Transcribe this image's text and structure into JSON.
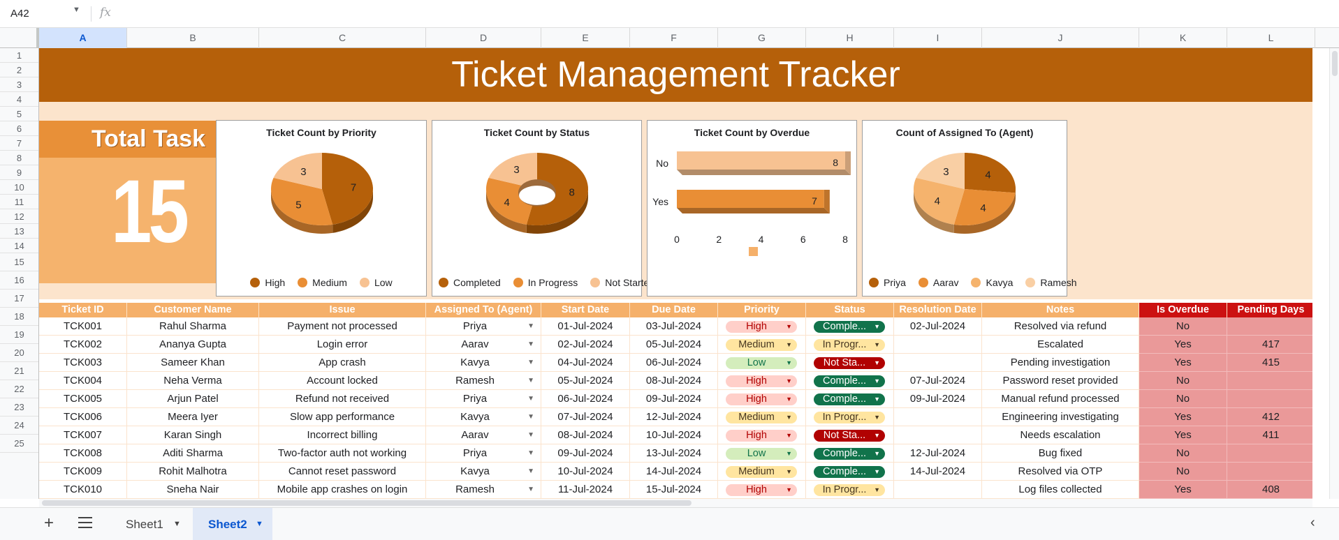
{
  "formula_bar": {
    "cell_ref": "A42",
    "fx_label": "fx"
  },
  "columns": [
    "A",
    "B",
    "C",
    "D",
    "E",
    "F",
    "G",
    "H",
    "I",
    "J",
    "K",
    "L"
  ],
  "rows": [
    "1",
    "2",
    "3",
    "4",
    "5",
    "6",
    "7",
    "8",
    "9",
    "10",
    "11",
    "12",
    "13",
    "14",
    "15",
    "16",
    "17",
    "18",
    "19",
    "20",
    "21",
    "22",
    "23",
    "24",
    "25"
  ],
  "title": "Ticket Management Tracker",
  "total_task": {
    "label": "Total Task",
    "value": "15"
  },
  "charts": {
    "priority": {
      "title": "Ticket Count by Priority",
      "type": "pie",
      "slices": [
        {
          "label": "High",
          "value": 7,
          "color": "#b5600a"
        },
        {
          "label": "Medium",
          "value": 5,
          "color": "#e98e35"
        },
        {
          "label": "Low",
          "value": 3,
          "color": "#f7c292"
        }
      ]
    },
    "status": {
      "title": "Ticket Count by Status",
      "type": "donut",
      "slices": [
        {
          "label": "Completed",
          "value": 8,
          "color": "#b5600a"
        },
        {
          "label": "In Progress",
          "value": 4,
          "color": "#e98e35"
        },
        {
          "label": "Not Started",
          "value": 3,
          "color": "#f7c292"
        }
      ]
    },
    "overdue": {
      "title": "Ticket Count by Overdue",
      "type": "bar",
      "categories": [
        "No",
        "Yes"
      ],
      "values": [
        8,
        7
      ],
      "colors": [
        "#f7c292",
        "#e98e35"
      ],
      "xlim": [
        0,
        8
      ],
      "ticks": [
        "0",
        "2",
        "4",
        "6",
        "8"
      ],
      "legend_color": "#f5b06a"
    },
    "agent": {
      "title": "Count of Assigned To (Agent)",
      "type": "pie",
      "slices": [
        {
          "label": "Priya",
          "value": 4,
          "color": "#b5600a"
        },
        {
          "label": "Aarav",
          "value": 4,
          "color": "#e98e35"
        },
        {
          "label": "Kavya",
          "value": 4,
          "color": "#f5b36d"
        },
        {
          "label": "Ramesh",
          "value": 3,
          "color": "#f9cfa4"
        }
      ]
    }
  },
  "table": {
    "headers": [
      "Ticket ID",
      "Customer Name",
      "Issue",
      "Assigned To (Agent)",
      "Start Date",
      "Due Date",
      "Priority",
      "Status",
      "Resolution Date",
      "Notes",
      "Is Overdue",
      "Pending Days"
    ],
    "rows": [
      {
        "id": "TCK001",
        "customer": "Rahul Sharma",
        "issue": "Payment not processed",
        "agent": "Priya",
        "start": "01-Jul-2024",
        "due": "03-Jul-2024",
        "priority": "High",
        "status": "Comple...",
        "resolution": "02-Jul-2024",
        "notes": "Resolved via refund",
        "overdue": "No",
        "pending": ""
      },
      {
        "id": "TCK002",
        "customer": "Ananya Gupta",
        "issue": "Login error",
        "agent": "Aarav",
        "start": "02-Jul-2024",
        "due": "05-Jul-2024",
        "priority": "Medium",
        "status": "In Progr...",
        "resolution": "",
        "notes": "Escalated",
        "overdue": "Yes",
        "pending": "417"
      },
      {
        "id": "TCK003",
        "customer": "Sameer Khan",
        "issue": "App crash",
        "agent": "Kavya",
        "start": "04-Jul-2024",
        "due": "06-Jul-2024",
        "priority": "Low",
        "status": "Not Sta...",
        "resolution": "",
        "notes": "Pending investigation",
        "overdue": "Yes",
        "pending": "415"
      },
      {
        "id": "TCK004",
        "customer": "Neha Verma",
        "issue": "Account locked",
        "agent": "Ramesh",
        "start": "05-Jul-2024",
        "due": "08-Jul-2024",
        "priority": "High",
        "status": "Comple...",
        "resolution": "07-Jul-2024",
        "notes": "Password reset provided",
        "overdue": "No",
        "pending": ""
      },
      {
        "id": "TCK005",
        "customer": "Arjun Patel",
        "issue": "Refund not received",
        "agent": "Priya",
        "start": "06-Jul-2024",
        "due": "09-Jul-2024",
        "priority": "High",
        "status": "Comple...",
        "resolution": "09-Jul-2024",
        "notes": "Manual refund processed",
        "overdue": "No",
        "pending": ""
      },
      {
        "id": "TCK006",
        "customer": "Meera Iyer",
        "issue": "Slow app performance",
        "agent": "Kavya",
        "start": "07-Jul-2024",
        "due": "12-Jul-2024",
        "priority": "Medium",
        "status": "In Progr...",
        "resolution": "",
        "notes": "Engineering investigating",
        "overdue": "Yes",
        "pending": "412"
      },
      {
        "id": "TCK007",
        "customer": "Karan Singh",
        "issue": "Incorrect billing",
        "agent": "Aarav",
        "start": "08-Jul-2024",
        "due": "10-Jul-2024",
        "priority": "High",
        "status": "Not Sta...",
        "resolution": "",
        "notes": "Needs escalation",
        "overdue": "Yes",
        "pending": "411"
      },
      {
        "id": "TCK008",
        "customer": "Aditi Sharma",
        "issue": "Two-factor auth not working",
        "agent": "Priya",
        "start": "09-Jul-2024",
        "due": "13-Jul-2024",
        "priority": "Low",
        "status": "Comple...",
        "resolution": "12-Jul-2024",
        "notes": "Bug fixed",
        "overdue": "No",
        "pending": ""
      },
      {
        "id": "TCK009",
        "customer": "Rohit Malhotra",
        "issue": "Cannot reset password",
        "agent": "Kavya",
        "start": "10-Jul-2024",
        "due": "14-Jul-2024",
        "priority": "Medium",
        "status": "Comple...",
        "resolution": "14-Jul-2024",
        "notes": "Resolved via OTP",
        "overdue": "No",
        "pending": ""
      },
      {
        "id": "TCK010",
        "customer": "Sneha Nair",
        "issue": "Mobile app crashes on login",
        "agent": "Ramesh",
        "start": "11-Jul-2024",
        "due": "15-Jul-2024",
        "priority": "High",
        "status": "In Progr...",
        "resolution": "",
        "notes": "Log files collected",
        "overdue": "Yes",
        "pending": "408"
      }
    ]
  },
  "chip_styles": {
    "High": {
      "bg": "#ffcfc9",
      "fg": "#b10202"
    },
    "Medium": {
      "bg": "#ffe5a0",
      "fg": "#473821"
    },
    "Low": {
      "bg": "#d4edbc",
      "fg": "#11734b"
    },
    "Comple...": {
      "bg": "#11734b",
      "fg": "#ffffff"
    },
    "In Progr...": {
      "bg": "#ffe5a0",
      "fg": "#473821"
    },
    "Not Sta...": {
      "bg": "#b10202",
      "fg": "#ffffff"
    }
  },
  "sheets": [
    {
      "name": "Sheet1",
      "active": false
    },
    {
      "name": "Sheet2",
      "active": true
    }
  ],
  "icons": {
    "add_sheet": "plus-icon",
    "all_sheets": "menu-icon",
    "collapse": "chevron-left-icon"
  }
}
